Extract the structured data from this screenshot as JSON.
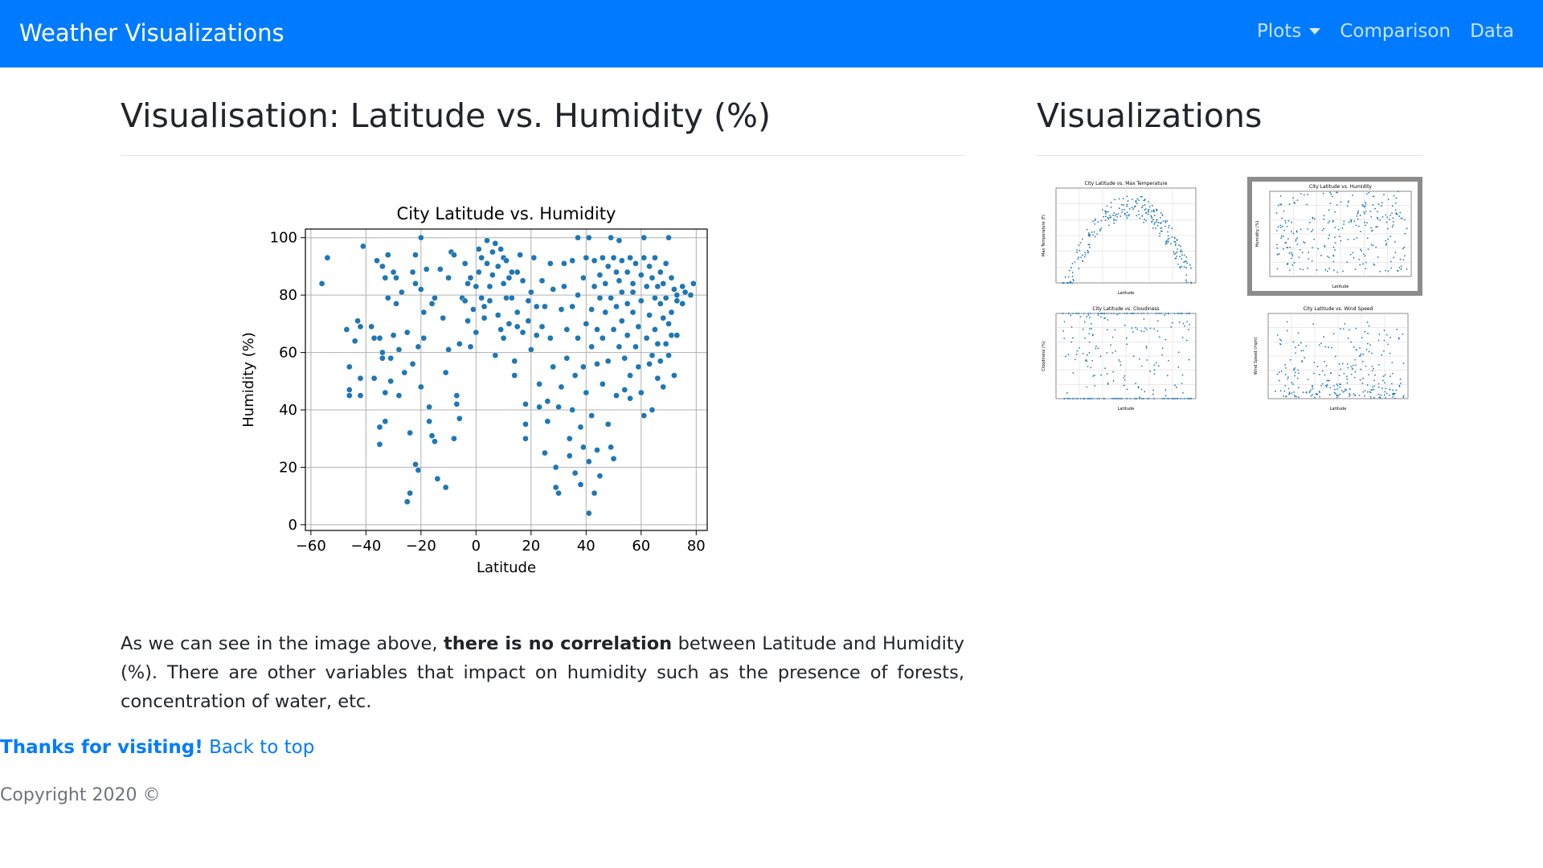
{
  "navbar": {
    "brand": "Weather Visualizations",
    "links": [
      {
        "label": "Plots",
        "dropdown": true
      },
      {
        "label": "Comparison"
      },
      {
        "label": "Data"
      }
    ],
    "background": "#007bff"
  },
  "main": {
    "title": "Visualisation: Latitude vs. Humidity (%)",
    "paragraph_before": "As we can see in the image above, ",
    "paragraph_bold": "there is no correlation",
    "paragraph_after": " between Latitude and Humidity (%). There are other variables that impact on humidity such as the presence of forests, concentration of water, etc."
  },
  "sidebar": {
    "title": "Visualizations",
    "thumbnails": [
      {
        "title": "City Latitude vs. Max Temperature",
        "ylabel": "Max Temperature (F)",
        "xlabel": "Latitude",
        "active": false
      },
      {
        "title": "City Latitude vs. Humidity",
        "ylabel": "Humidity (%)",
        "xlabel": "Latitude",
        "active": true
      },
      {
        "title": "City Latitude vs. Cloudiness",
        "ylabel": "Cloudiness (%)",
        "xlabel": "Latitude",
        "active": false
      },
      {
        "title": "City Latitude vs. Wind Speed",
        "ylabel": "Wind Speed (mph)",
        "xlabel": "Latitude",
        "active": false
      }
    ]
  },
  "footer": {
    "thanks": "Thanks for visiting!",
    "back_to_top": "Back to top",
    "copyright": "Copyright 2020 ©"
  },
  "chart_data": {
    "type": "scatter",
    "title": "City Latitude vs. Humidity",
    "xlabel": "Latitude",
    "ylabel": "Humidity (%)",
    "xlim": [
      -62,
      84
    ],
    "ylim": [
      -2,
      103
    ],
    "xticks": [
      -60,
      -40,
      -20,
      0,
      20,
      40,
      60,
      80
    ],
    "yticks": [
      0,
      20,
      40,
      60,
      80,
      100
    ],
    "xtick_labels": [
      "−60",
      "−40",
      "−20",
      "0",
      "20",
      "40",
      "60",
      "80"
    ],
    "ytick_labels": [
      "0",
      "20",
      "40",
      "60",
      "80",
      "100"
    ],
    "grid": true,
    "color": "#1f77b4",
    "points": [
      [
        -56,
        84
      ],
      [
        -54,
        93
      ],
      [
        -47,
        68
      ],
      [
        -46,
        45
      ],
      [
        -46,
        47
      ],
      [
        -46,
        55
      ],
      [
        -44,
        64
      ],
      [
        -43,
        71
      ],
      [
        -42,
        45
      ],
      [
        -42,
        51
      ],
      [
        -42,
        69
      ],
      [
        -41,
        97
      ],
      [
        -38,
        69
      ],
      [
        -37,
        51
      ],
      [
        -37,
        65
      ],
      [
        -36,
        92
      ],
      [
        -35,
        34
      ],
      [
        -35,
        28
      ],
      [
        -35,
        65
      ],
      [
        -34,
        90
      ],
      [
        -34,
        60
      ],
      [
        -34,
        58
      ],
      [
        -33,
        46
      ],
      [
        -33,
        36
      ],
      [
        -33,
        86
      ],
      [
        -32,
        79
      ],
      [
        -32,
        94
      ],
      [
        -31,
        58
      ],
      [
        -31,
        50
      ],
      [
        -30,
        88
      ],
      [
        -30,
        66
      ],
      [
        -29,
        77
      ],
      [
        -29,
        86
      ],
      [
        -28,
        61
      ],
      [
        -28,
        45
      ],
      [
        -27,
        81
      ],
      [
        -26,
        53
      ],
      [
        -25,
        67
      ],
      [
        -25,
        8
      ],
      [
        -24,
        11
      ],
      [
        -24,
        32
      ],
      [
        -23,
        88
      ],
      [
        -23,
        56
      ],
      [
        -22,
        84
      ],
      [
        -22,
        94
      ],
      [
        -22,
        21
      ],
      [
        -21,
        62
      ],
      [
        -21,
        19
      ],
      [
        -20,
        100
      ],
      [
        -20,
        82
      ],
      [
        -20,
        48
      ],
      [
        -19,
        74
      ],
      [
        -19,
        65
      ],
      [
        -18,
        89
      ],
      [
        -17,
        41
      ],
      [
        -17,
        36
      ],
      [
        -16,
        31
      ],
      [
        -16,
        77
      ],
      [
        -15,
        79
      ],
      [
        -15,
        29
      ],
      [
        -14,
        16
      ],
      [
        -13,
        89
      ],
      [
        -12,
        72
      ],
      [
        -11,
        53
      ],
      [
        -11,
        13
      ],
      [
        -10,
        86
      ],
      [
        -10,
        61
      ],
      [
        -9,
        95
      ],
      [
        -8,
        94
      ],
      [
        -8,
        30
      ],
      [
        -7,
        45
      ],
      [
        -7,
        42
      ],
      [
        -6,
        63
      ],
      [
        -6,
        37
      ],
      [
        -5,
        79
      ],
      [
        -4,
        78
      ],
      [
        -4,
        91
      ],
      [
        -3,
        84
      ],
      [
        -3,
        71
      ],
      [
        -2,
        86
      ],
      [
        -2,
        62
      ],
      [
        -1,
        75
      ],
      [
        0,
        67
      ],
      [
        0,
        83
      ],
      [
        1,
        96
      ],
      [
        1,
        88
      ],
      [
        2,
        93
      ],
      [
        2,
        79
      ],
      [
        3,
        72
      ],
      [
        3,
        76
      ],
      [
        4,
        99
      ],
      [
        4,
        91
      ],
      [
        5,
        83
      ],
      [
        5,
        78
      ],
      [
        6,
        87
      ],
      [
        6,
        95
      ],
      [
        7,
        98
      ],
      [
        7,
        59
      ],
      [
        8,
        90
      ],
      [
        8,
        73
      ],
      [
        9,
        96
      ],
      [
        9,
        68
      ],
      [
        10,
        93
      ],
      [
        10,
        84
      ],
      [
        10,
        65
      ],
      [
        11,
        79
      ],
      [
        11,
        92
      ],
      [
        12,
        86
      ],
      [
        12,
        70
      ],
      [
        13,
        88
      ],
      [
        13,
        79
      ],
      [
        14,
        57
      ],
      [
        14,
        52
      ],
      [
        15,
        74
      ],
      [
        15,
        69
      ],
      [
        15,
        88
      ],
      [
        16,
        94
      ],
      [
        17,
        85
      ],
      [
        17,
        67
      ],
      [
        18,
        42
      ],
      [
        18,
        30
      ],
      [
        18,
        35
      ],
      [
        19,
        78
      ],
      [
        19,
        71
      ],
      [
        20,
        61
      ],
      [
        20,
        81
      ],
      [
        21,
        93
      ],
      [
        22,
        76
      ],
      [
        22,
        66
      ],
      [
        23,
        49
      ],
      [
        23,
        41
      ],
      [
        24,
        85
      ],
      [
        24,
        69
      ],
      [
        25,
        76
      ],
      [
        25,
        25
      ],
      [
        26,
        36
      ],
      [
        26,
        43
      ],
      [
        27,
        91
      ],
      [
        27,
        65
      ],
      [
        28,
        82
      ],
      [
        28,
        55
      ],
      [
        29,
        13
      ],
      [
        29,
        20
      ],
      [
        30,
        41
      ],
      [
        30,
        11
      ],
      [
        31,
        75
      ],
      [
        31,
        48
      ],
      [
        32,
        91
      ],
      [
        32,
        83
      ],
      [
        33,
        68
      ],
      [
        33,
        58
      ],
      [
        34,
        30
      ],
      [
        34,
        24
      ],
      [
        35,
        92
      ],
      [
        35,
        76
      ],
      [
        35,
        40
      ],
      [
        36,
        52
      ],
      [
        36,
        18
      ],
      [
        37,
        65
      ],
      [
        37,
        80
      ],
      [
        37,
        100
      ],
      [
        38,
        14
      ],
      [
        38,
        34
      ],
      [
        39,
        55
      ],
      [
        39,
        27
      ],
      [
        39,
        86
      ],
      [
        40,
        93
      ],
      [
        40,
        70
      ],
      [
        40,
        46
      ],
      [
        41,
        100
      ],
      [
        41,
        22
      ],
      [
        41,
        4
      ],
      [
        42,
        75
      ],
      [
        42,
        62
      ],
      [
        42,
        38
      ],
      [
        43,
        83
      ],
      [
        43,
        92
      ],
      [
        43,
        11
      ],
      [
        44,
        56
      ],
      [
        44,
        68
      ],
      [
        44,
        26
      ],
      [
        45,
        79
      ],
      [
        45,
        87
      ],
      [
        45,
        17
      ],
      [
        46,
        93
      ],
      [
        46,
        65
      ],
      [
        46,
        49
      ],
      [
        47,
        84
      ],
      [
        47,
        74
      ],
      [
        48,
        90
      ],
      [
        48,
        57
      ],
      [
        48,
        35
      ],
      [
        49,
        100
      ],
      [
        49,
        79
      ],
      [
        49,
        27
      ],
      [
        50,
        93
      ],
      [
        50,
        68
      ],
      [
        50,
        23
      ],
      [
        51,
        88
      ],
      [
        51,
        76
      ],
      [
        51,
        45
      ],
      [
        52,
        85
      ],
      [
        52,
        62
      ],
      [
        52,
        99
      ],
      [
        53,
        71
      ],
      [
        53,
        81
      ],
      [
        53,
        92
      ],
      [
        54,
        58
      ],
      [
        54,
        47
      ],
      [
        55,
        77
      ],
      [
        55,
        88
      ],
      [
        55,
        66
      ],
      [
        56,
        93
      ],
      [
        56,
        52
      ],
      [
        56,
        44
      ],
      [
        57,
        84
      ],
      [
        57,
        74
      ],
      [
        57,
        81
      ],
      [
        58,
        91
      ],
      [
        58,
        62
      ],
      [
        59,
        69
      ],
      [
        59,
        55
      ],
      [
        60,
        87
      ],
      [
        60,
        78
      ],
      [
        60,
        46
      ],
      [
        61,
        93
      ],
      [
        61,
        38
      ],
      [
        61,
        100
      ],
      [
        62,
        83
      ],
      [
        62,
        65
      ],
      [
        63,
        90
      ],
      [
        63,
        73
      ],
      [
        63,
        56
      ],
      [
        64,
        40
      ],
      [
        64,
        86
      ],
      [
        64,
        59
      ],
      [
        65,
        79
      ],
      [
        65,
        93
      ],
      [
        65,
        68
      ],
      [
        66,
        83
      ],
      [
        66,
        51
      ],
      [
        66,
        63
      ],
      [
        67,
        77
      ],
      [
        67,
        88
      ],
      [
        67,
        57
      ],
      [
        68,
        72
      ],
      [
        68,
        84
      ],
      [
        68,
        48
      ],
      [
        69,
        91
      ],
      [
        69,
        79
      ],
      [
        69,
        63
      ],
      [
        70,
        100
      ],
      [
        70,
        70
      ],
      [
        70,
        59
      ],
      [
        71,
        86
      ],
      [
        71,
        74
      ],
      [
        71,
        66
      ],
      [
        72,
        52
      ],
      [
        72,
        82
      ],
      [
        73,
        78
      ],
      [
        73,
        80
      ],
      [
        73,
        66
      ],
      [
        75,
        83
      ],
      [
        75,
        77
      ],
      [
        76,
        81
      ],
      [
        78,
        80
      ],
      [
        79,
        84
      ]
    ]
  }
}
